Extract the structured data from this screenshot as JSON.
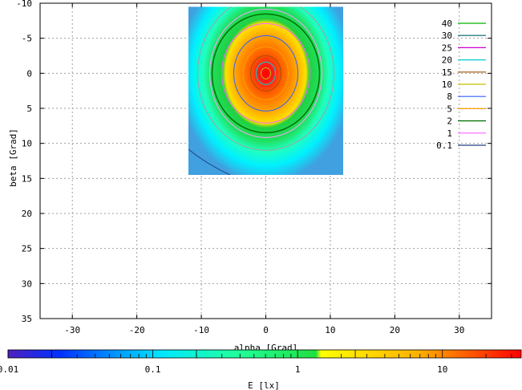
{
  "chart_data": {
    "type": "heatmap",
    "title": "",
    "xlabel": "alpha [Grad]",
    "ylabel": "beta [Grad]",
    "xlim": [
      -35,
      35
    ],
    "ylim": [
      35,
      -10
    ],
    "xticks": [
      -30,
      -20,
      -10,
      0,
      10,
      20,
      30
    ],
    "yticks": [
      -10,
      -5,
      0,
      5,
      10,
      15,
      20,
      25,
      30,
      35
    ],
    "grid": true,
    "data_extent": {
      "alpha": [
        -12,
        12
      ],
      "beta": [
        -9.5,
        14.5
      ]
    },
    "peak": {
      "alpha": 0,
      "beta": 0
    },
    "contour_levels": [
      {
        "label": "40",
        "color": "#00b000"
      },
      {
        "label": "30",
        "color": "#006060"
      },
      {
        "label": "25",
        "color": "#d000d0"
      },
      {
        "label": "20",
        "color": "#00d0d0"
      },
      {
        "label": "15",
        "color": "#a05000"
      },
      {
        "label": "10",
        "color": "#c0c000"
      },
      {
        "label": "8",
        "color": "#3060ff"
      },
      {
        "label": "5",
        "color": "#ffa000"
      },
      {
        "label": "2",
        "color": "#007000"
      },
      {
        "label": "1",
        "color": "#ff60ff"
      },
      {
        "label": "0.1",
        "color": "#204080"
      }
    ],
    "legend_position": "top-right",
    "colorbar": {
      "label": "E [lx]",
      "scale": "log",
      "range": [
        0.01,
        35
      ],
      "ticks": [
        {
          "value": 0.01,
          "label": "0.01"
        },
        {
          "value": 0.1,
          "label": "0.1"
        },
        {
          "value": 1,
          "label": "1"
        },
        {
          "value": 10,
          "label": "10"
        }
      ],
      "band_edges": [
        0.02,
        0.2,
        2.5
      ]
    }
  }
}
